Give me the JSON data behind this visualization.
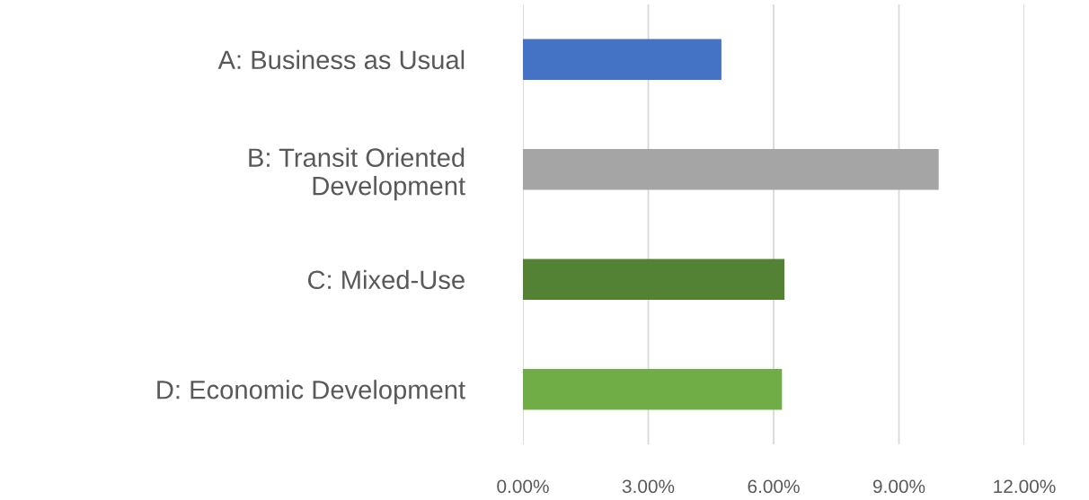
{
  "chart_data": {
    "type": "bar",
    "orientation": "horizontal",
    "categories": [
      "A: Business as Usual",
      "B: Transit Oriented\nDevelopment",
      "C: Mixed-Use",
      "D: Economic Development"
    ],
    "values": [
      4.75,
      9.95,
      6.26,
      6.2
    ],
    "colors": [
      "#4472c4",
      "#a5a5a5",
      "#548235",
      "#70ad47"
    ],
    "xlim": [
      0,
      12
    ],
    "xticks": [
      {
        "value": 0,
        "label": "0.00%"
      },
      {
        "value": 3,
        "label": "3.00%"
      },
      {
        "value": 6,
        "label": "6.00%"
      },
      {
        "value": 9,
        "label": "9.00%"
      },
      {
        "value": 12,
        "label": "12.00%"
      }
    ],
    "grid": "x"
  }
}
